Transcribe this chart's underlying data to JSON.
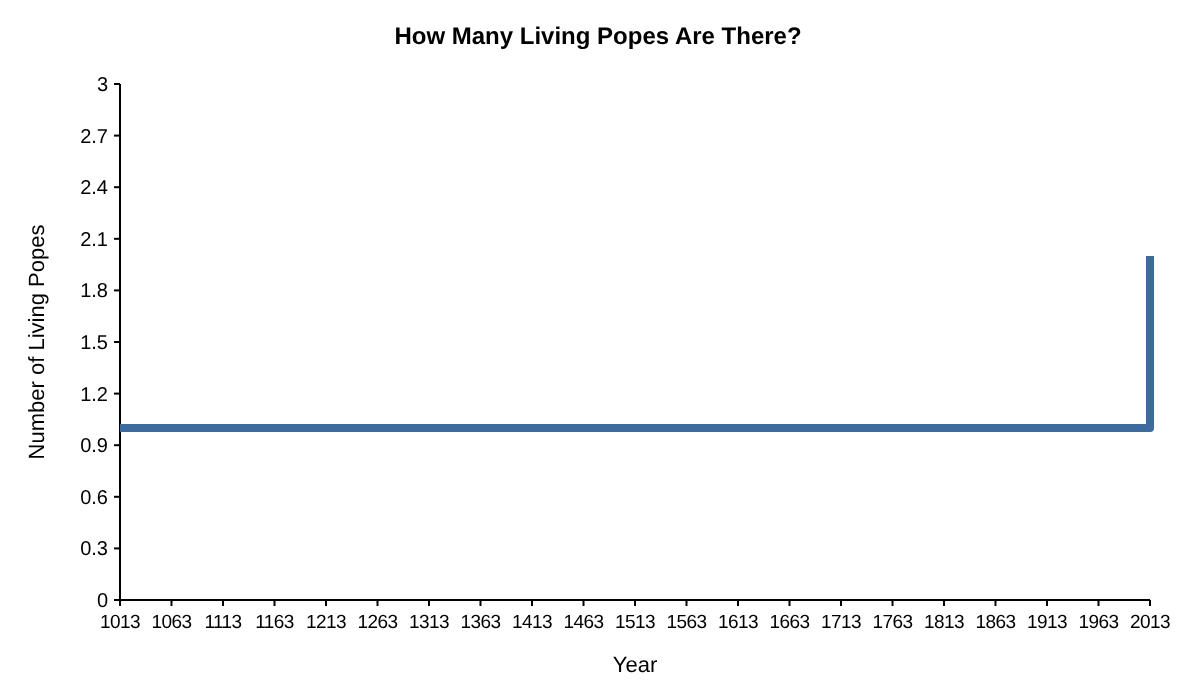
{
  "chart_data": {
    "type": "step",
    "title": "How Many Living Popes Are There?",
    "xlabel": "Year",
    "ylabel": "Number of Living Popes",
    "x": [
      1013,
      2013
    ],
    "series": [
      {
        "color": "#3d6b9e",
        "values": [
          1,
          2
        ]
      }
    ],
    "xlim": [
      1013,
      2013
    ],
    "xticks": [
      1013,
      1063,
      1113,
      1163,
      1213,
      1263,
      1313,
      1363,
      1413,
      1463,
      1513,
      1563,
      1613,
      1663,
      1713,
      1763,
      1813,
      1863,
      1913,
      1963,
      2013
    ],
    "ylim": [
      0,
      3
    ],
    "yticks": [
      0,
      0.3,
      0.6,
      0.9,
      1.2,
      1.5,
      1.8,
      2.1,
      2.4,
      2.7,
      3
    ],
    "grid": false,
    "marker": "none",
    "line_style": "solid"
  }
}
